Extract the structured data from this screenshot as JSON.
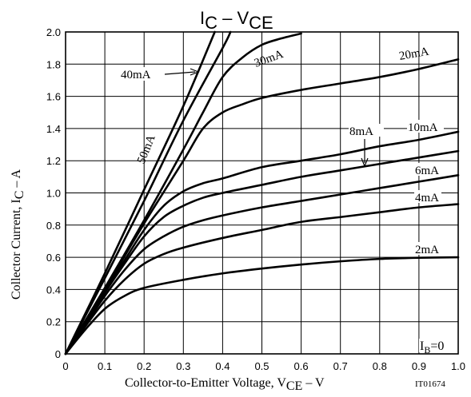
{
  "chart_data": {
    "type": "line",
    "title": {
      "main": "I",
      "sub": "C",
      "sep": " – V",
      "sub2": "CE"
    },
    "xlabel": {
      "pre": "Collector-to-Emitter Voltage, V",
      "sub": "CE",
      "post": " – V"
    },
    "ylabel": {
      "pre": "Collector Current, I",
      "sub": "C",
      "post": " – A"
    },
    "figure_id": "IT01674",
    "xlim": [
      0,
      1.0
    ],
    "ylim": [
      0,
      2.0
    ],
    "xticks": [
      "0",
      "0.1",
      "0.2",
      "0.3",
      "0.4",
      "0.5",
      "0.6",
      "0.7",
      "0.8",
      "0.9",
      "1.0"
    ],
    "yticks": [
      "0",
      "0.2",
      "0.4",
      "0.6",
      "0.8",
      "1.0",
      "1.2",
      "1.4",
      "1.6",
      "1.8",
      "2.0"
    ],
    "grid": true,
    "series": [
      {
        "name": "2mA",
        "points": [
          [
            0,
            0
          ],
          [
            0.05,
            0.15
          ],
          [
            0.1,
            0.28
          ],
          [
            0.15,
            0.36
          ],
          [
            0.2,
            0.41
          ],
          [
            0.3,
            0.46
          ],
          [
            0.4,
            0.5
          ],
          [
            0.5,
            0.53
          ],
          [
            0.6,
            0.555
          ],
          [
            0.7,
            0.575
          ],
          [
            0.8,
            0.59
          ],
          [
            0.9,
            0.597
          ],
          [
            1.0,
            0.6
          ]
        ]
      },
      {
        "name": "4mA",
        "points": [
          [
            0,
            0
          ],
          [
            0.05,
            0.17
          ],
          [
            0.1,
            0.33
          ],
          [
            0.15,
            0.46
          ],
          [
            0.2,
            0.56
          ],
          [
            0.25,
            0.62
          ],
          [
            0.3,
            0.66
          ],
          [
            0.4,
            0.72
          ],
          [
            0.5,
            0.77
          ],
          [
            0.6,
            0.82
          ],
          [
            0.7,
            0.85
          ],
          [
            0.8,
            0.88
          ],
          [
            0.9,
            0.91
          ],
          [
            1.0,
            0.93
          ]
        ]
      },
      {
        "name": "6mA",
        "points": [
          [
            0,
            0
          ],
          [
            0.05,
            0.18
          ],
          [
            0.1,
            0.36
          ],
          [
            0.15,
            0.52
          ],
          [
            0.2,
            0.65
          ],
          [
            0.25,
            0.73
          ],
          [
            0.3,
            0.79
          ],
          [
            0.35,
            0.83
          ],
          [
            0.4,
            0.86
          ],
          [
            0.5,
            0.91
          ],
          [
            0.6,
            0.95
          ],
          [
            0.7,
            0.99
          ],
          [
            0.8,
            1.03
          ],
          [
            0.9,
            1.07
          ],
          [
            1.0,
            1.11
          ]
        ]
      },
      {
        "name": "8mA",
        "points": [
          [
            0,
            0
          ],
          [
            0.05,
            0.19
          ],
          [
            0.1,
            0.38
          ],
          [
            0.15,
            0.56
          ],
          [
            0.2,
            0.73
          ],
          [
            0.25,
            0.85
          ],
          [
            0.3,
            0.92
          ],
          [
            0.35,
            0.97
          ],
          [
            0.4,
            1.0
          ],
          [
            0.5,
            1.05
          ],
          [
            0.6,
            1.1
          ],
          [
            0.7,
            1.14
          ],
          [
            0.8,
            1.18
          ],
          [
            0.9,
            1.22
          ],
          [
            1.0,
            1.26
          ]
        ]
      },
      {
        "name": "10mA",
        "points": [
          [
            0,
            0
          ],
          [
            0.05,
            0.2
          ],
          [
            0.1,
            0.39
          ],
          [
            0.15,
            0.58
          ],
          [
            0.2,
            0.77
          ],
          [
            0.25,
            0.92
          ],
          [
            0.3,
            1.01
          ],
          [
            0.35,
            1.06
          ],
          [
            0.4,
            1.09
          ],
          [
            0.5,
            1.16
          ],
          [
            0.6,
            1.2
          ],
          [
            0.7,
            1.24
          ],
          [
            0.8,
            1.29
          ],
          [
            0.9,
            1.33
          ],
          [
            1.0,
            1.38
          ]
        ]
      },
      {
        "name": "20mA",
        "points": [
          [
            0,
            0
          ],
          [
            0.1,
            0.4
          ],
          [
            0.2,
            0.81
          ],
          [
            0.3,
            1.2
          ],
          [
            0.35,
            1.4
          ],
          [
            0.4,
            1.5
          ],
          [
            0.45,
            1.55
          ],
          [
            0.5,
            1.59
          ],
          [
            0.6,
            1.64
          ],
          [
            0.7,
            1.68
          ],
          [
            0.8,
            1.72
          ],
          [
            0.9,
            1.77
          ],
          [
            1.0,
            1.83
          ]
        ]
      },
      {
        "name": "30mA",
        "points": [
          [
            0,
            0
          ],
          [
            0.1,
            0.41
          ],
          [
            0.2,
            0.83
          ],
          [
            0.3,
            1.27
          ],
          [
            0.35,
            1.5
          ],
          [
            0.4,
            1.72
          ],
          [
            0.45,
            1.84
          ],
          [
            0.5,
            1.92
          ],
          [
            0.55,
            1.96
          ],
          [
            0.6,
            1.99
          ]
        ]
      },
      {
        "name": "40mA",
        "points": [
          [
            0,
            0
          ],
          [
            0.1,
            0.47
          ],
          [
            0.2,
            0.95
          ],
          [
            0.3,
            1.45
          ],
          [
            0.4,
            1.9
          ],
          [
            0.42,
            2.0
          ]
        ]
      },
      {
        "name": "50mA",
        "points": [
          [
            0,
            0
          ],
          [
            0.1,
            0.5
          ],
          [
            0.2,
            1.02
          ],
          [
            0.3,
            1.54
          ],
          [
            0.38,
            2.0
          ]
        ]
      }
    ],
    "annotations": [
      {
        "id": "lbl-2mA",
        "text": "2mA"
      },
      {
        "id": "lbl-4mA",
        "text": "4mA"
      },
      {
        "id": "lbl-6mA",
        "text": "6mA"
      },
      {
        "id": "lbl-8mA",
        "text": "8mA"
      },
      {
        "id": "lbl-10mA",
        "text": "10mA"
      },
      {
        "id": "lbl-20mA",
        "text": "20mA"
      },
      {
        "id": "lbl-30mA",
        "text": "30mA"
      },
      {
        "id": "lbl-40mA",
        "text": "40mA"
      },
      {
        "id": "lbl-50mA",
        "text": "50mA"
      },
      {
        "id": "lbl-ib0",
        "text": "I",
        "sub": "B",
        "post": "=0"
      }
    ]
  }
}
